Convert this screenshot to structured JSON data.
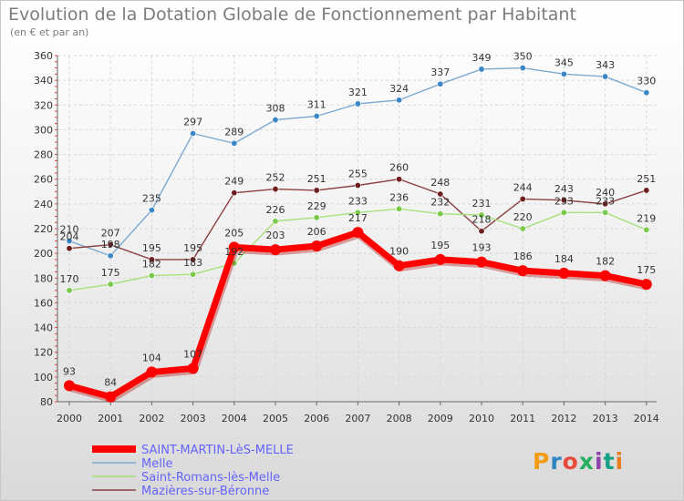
{
  "chart_data": {
    "type": "line",
    "title": "Evolution de la Dotation Globale de Fonctionnement par Habitant",
    "subtitle": "(en € et par an)",
    "x": [
      2000,
      2001,
      2002,
      2003,
      2004,
      2005,
      2006,
      2007,
      2008,
      2009,
      2010,
      2011,
      2012,
      2013,
      2014
    ],
    "x_labels": [
      "2000",
      "2001",
      "2002",
      "2003",
      "2004",
      "2005",
      "2006",
      "2007",
      "2008",
      "2009",
      "2010",
      "2011",
      "2012",
      "2013",
      "2014"
    ],
    "ylim": [
      80,
      360
    ],
    "yticks": [
      80,
      100,
      120,
      140,
      160,
      180,
      200,
      220,
      240,
      260,
      280,
      300,
      320,
      340,
      360
    ],
    "series": [
      {
        "name": "Melle",
        "color": "#7ba9d1",
        "marker": "#3b86c6",
        "values": [
          210,
          198,
          235,
          297,
          289,
          308,
          311,
          321,
          324,
          337,
          349,
          350,
          345,
          343,
          330
        ],
        "labels": [
          "210",
          "198",
          "235",
          "297",
          "289",
          "308",
          "311",
          "321",
          "324",
          "337",
          "349",
          "350",
          "345",
          "343",
          "330"
        ]
      },
      {
        "name": "Mazières-sur-Béronne",
        "color": "#8c4040",
        "marker": "#6e1e1e",
        "values": [
          204,
          207,
          195,
          195,
          249,
          252,
          251,
          255,
          260,
          248,
          218,
          244,
          243,
          240,
          251
        ],
        "labels": [
          "204",
          "207",
          "195",
          "195",
          "249",
          "252",
          "251",
          "255",
          "260",
          "248",
          "218",
          "244",
          "243",
          "240",
          "251"
        ]
      },
      {
        "name": "Saint-Romans-lès-Melle",
        "color": "#a5e07a",
        "marker": "#78c84a",
        "values": [
          170,
          175,
          182,
          183,
          192,
          226,
          229,
          233,
          236,
          232,
          231,
          220,
          233,
          233,
          219
        ],
        "labels": [
          "170",
          "175",
          "182",
          "183",
          "192",
          "226",
          "229",
          "233",
          "236",
          "232",
          "231",
          "220",
          "233",
          "233",
          "219"
        ]
      },
      {
        "name": "SAINT-MARTIN-LèS-MELLE",
        "color": "#ff0000",
        "marker": "#ff0000",
        "thick": true,
        "values": [
          93,
          84,
          104,
          107,
          205,
          203,
          206,
          217,
          190,
          195,
          193,
          186,
          184,
          182,
          175
        ],
        "labels": [
          "93",
          "84",
          "104",
          "107",
          "205",
          "203",
          "206",
          "217",
          "190",
          "195",
          "193",
          "186",
          "184",
          "182",
          "175"
        ]
      }
    ],
    "legend": {
      "placement": "bottom-left",
      "entries": [
        "SAINT-MARTIN-LèS-MELLE",
        "Melle",
        "Saint-Romans-lès-Melle",
        "Mazières-sur-Béronne"
      ],
      "colors": [
        "#ff0000",
        "#7ba9d1",
        "#a5e07a",
        "#8c4040"
      ]
    }
  },
  "branding": {
    "logo_text": "Proxiti",
    "logo_colors": [
      "#f39c12",
      "#2e86c1",
      "#e74c3c",
      "#27ae60",
      "#8e44ad",
      "#16a085",
      "#e67e22"
    ]
  }
}
